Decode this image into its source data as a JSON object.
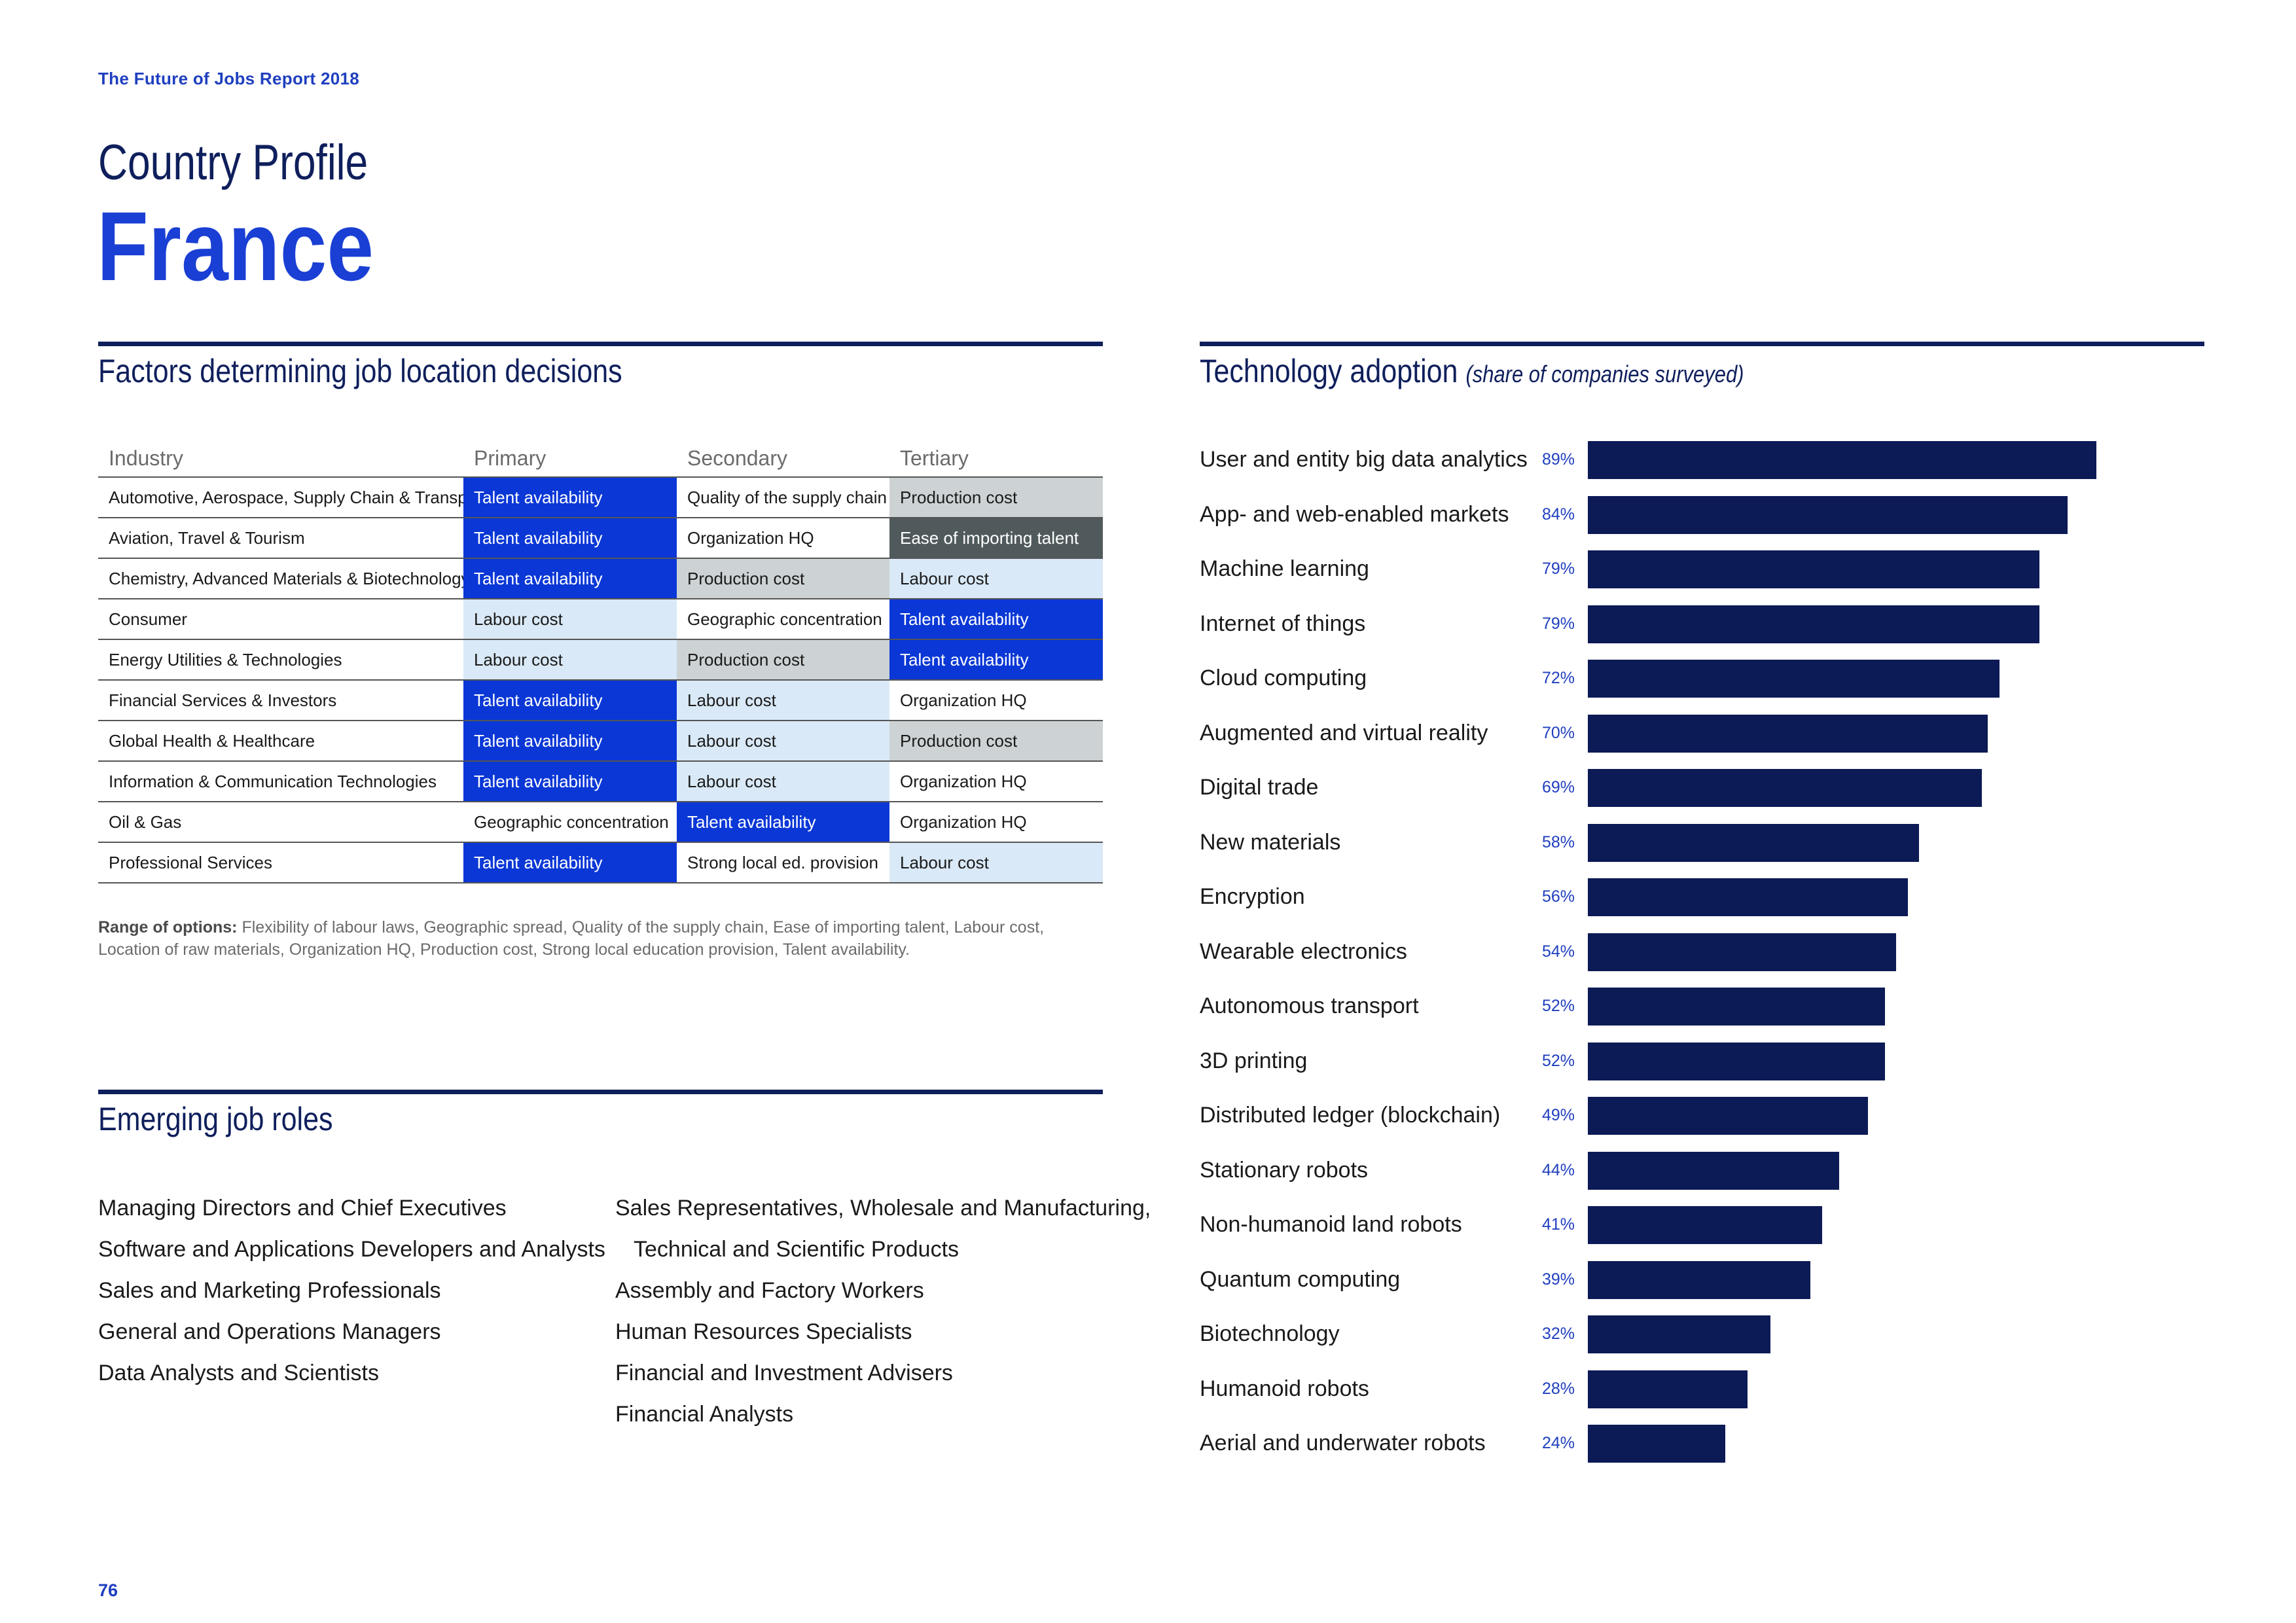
{
  "header": {
    "report_title": "The Future of Jobs Report 2018",
    "kicker": "Country Profile",
    "country": "France"
  },
  "factors": {
    "title": "Factors determining job location decisions",
    "columns": [
      "Industry",
      "Primary",
      "Secondary",
      "Tertiary"
    ],
    "rows": [
      {
        "industry": "Automotive, Aerospace, Supply Chain & Transport",
        "primary": "Talent availability",
        "secondary": "Quality of the supply chain",
        "tertiary": "Production cost"
      },
      {
        "industry": "Aviation, Travel & Tourism",
        "primary": "Talent availability",
        "secondary": "Organization HQ",
        "tertiary": "Ease of importing talent"
      },
      {
        "industry": "Chemistry, Advanced Materials & Biotechnology",
        "primary": "Talent availability",
        "secondary": "Production cost",
        "tertiary": "Labour cost"
      },
      {
        "industry": "Consumer",
        "primary": "Labour cost",
        "secondary": "Geographic concentration",
        "tertiary": "Talent availability"
      },
      {
        "industry": "Energy Utilities & Technologies",
        "primary": "Labour cost",
        "secondary": "Production cost",
        "tertiary": "Talent availability"
      },
      {
        "industry": "Financial Services & Investors",
        "primary": "Talent availability",
        "secondary": "Labour cost",
        "tertiary": "Organization HQ"
      },
      {
        "industry": "Global Health & Healthcare",
        "primary": "Talent availability",
        "secondary": "Labour cost",
        "tertiary": "Production cost"
      },
      {
        "industry": "Information & Communication Technologies",
        "primary": "Talent availability",
        "secondary": "Labour cost",
        "tertiary": "Organization HQ"
      },
      {
        "industry": "Oil & Gas",
        "primary": "Geographic concentration",
        "secondary": "Talent availability",
        "tertiary": "Organization HQ"
      },
      {
        "industry": "Professional Services",
        "primary": "Talent availability",
        "secondary": "Strong local ed. provision",
        "tertiary": "Labour cost"
      }
    ],
    "range_label": "Range of options:",
    "range_text": "Flexibility of labour laws, Geographic spread, Quality of the supply chain, Ease of importing talent, Labour cost, Location of raw materials, Organization HQ, Production cost, Strong local education provision, Talent availability."
  },
  "roles": {
    "title": "Emerging job roles",
    "col1": [
      "Managing Directors and Chief Executives",
      "Software and Applications Developers and Analysts",
      "Sales and Marketing Professionals",
      "General and Operations Managers",
      "Data Analysts and Scientists"
    ],
    "col2": [
      "Sales Representatives, Wholesale and Manufacturing,",
      "Technical and Scientific Products",
      "Assembly and Factory Workers",
      "Human Resources Specialists",
      "Financial and Investment Advisers",
      "Financial Analysts"
    ]
  },
  "tech": {
    "title": "Technology adoption",
    "subtitle": "(share of companies surveyed)"
  },
  "chart_data": {
    "type": "bar",
    "orientation": "horizontal",
    "title": "Technology adoption (share of companies surveyed)",
    "categories": [
      "User and entity big data analytics",
      "App- and web-enabled markets",
      "Machine learning",
      "Internet of things",
      "Cloud computing",
      "Augmented and virtual reality",
      "Digital trade",
      "New materials",
      "Encryption",
      "Wearable electronics",
      "Autonomous transport",
      "3D printing",
      "Distributed ledger (blockchain)",
      "Stationary robots",
      "Non-humanoid land robots",
      "Quantum computing",
      "Biotechnology",
      "Humanoid robots",
      "Aerial and underwater robots"
    ],
    "values": [
      89,
      84,
      79,
      79,
      72,
      70,
      69,
      58,
      56,
      54,
      52,
      52,
      49,
      44,
      41,
      39,
      32,
      28,
      24
    ],
    "value_labels": [
      "89%",
      "84%",
      "79%",
      "79%",
      "72%",
      "70%",
      "69%",
      "58%",
      "56%",
      "54%",
      "52%",
      "52%",
      "49%",
      "44%",
      "41%",
      "39%",
      "32%",
      "28%",
      "24%"
    ],
    "xlim": [
      0,
      100
    ],
    "bar_color": "#0c1a55"
  },
  "footer": {
    "page_number": "76"
  }
}
